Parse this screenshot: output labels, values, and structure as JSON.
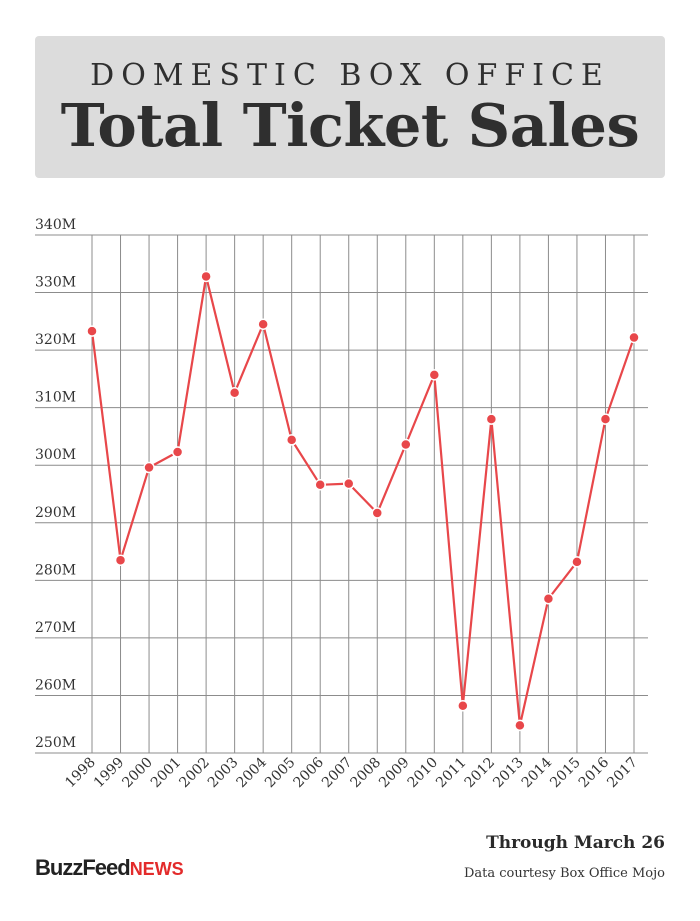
{
  "header": {
    "kicker": "DOMESTIC BOX OFFICE",
    "title": "Total Ticket Sales"
  },
  "footer": {
    "note": "Through March 26",
    "credit": "Data courtesy Box Office Mojo",
    "logo_primary": "BuzzFeed",
    "logo_secondary": "NEWS"
  },
  "colors": {
    "line": "#e8474a",
    "grid": "#8c8c8c",
    "header_bg": "#dcdcdc"
  },
  "chart_data": {
    "type": "line",
    "title": "",
    "xlabel": "",
    "ylabel": "",
    "grid": true,
    "ylim": [
      250,
      340
    ],
    "yticks": [
      340,
      330,
      320,
      310,
      300,
      290,
      280,
      270,
      260,
      250
    ],
    "ytick_labels": [
      "340M",
      "330M",
      "320M",
      "310M",
      "300M",
      "290M",
      "280M",
      "270M",
      "260M",
      "250M"
    ],
    "categories": [
      "1998",
      "1999",
      "2000",
      "2001",
      "2002",
      "2003",
      "2004",
      "2005",
      "2006",
      "2007",
      "2008",
      "2009",
      "2010",
      "2011",
      "2012",
      "2013",
      "2014",
      "2015",
      "2016",
      "2017"
    ],
    "values": [
      323.3,
      283.5,
      299.6,
      302.3,
      332.8,
      312.6,
      324.5,
      304.4,
      296.6,
      296.8,
      291.7,
      303.6,
      315.7,
      258.2,
      308.0,
      254.8,
      276.8,
      283.2,
      308.0,
      322.2
    ]
  }
}
